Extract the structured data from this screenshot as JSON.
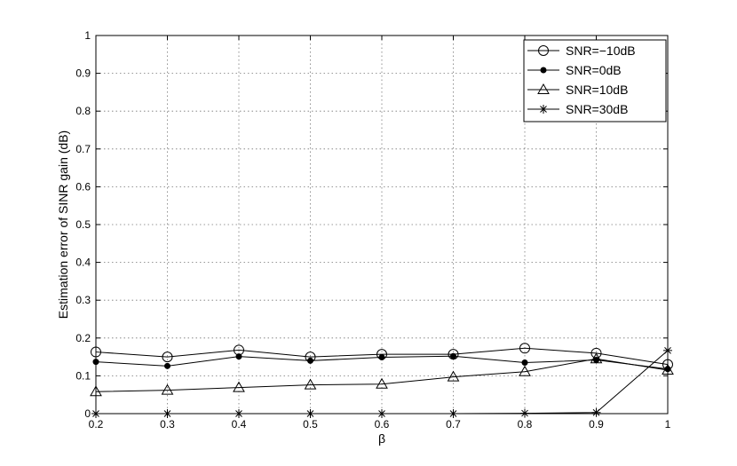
{
  "chart_data": {
    "type": "line",
    "xlabel": "β",
    "ylabel": "Estimation error of SINR gain (dB)",
    "xlim": [
      0.2,
      1
    ],
    "ylim": [
      0,
      1
    ],
    "xticks": [
      "0.2",
      "0.3",
      "0.4",
      "0.5",
      "0.6",
      "0.7",
      "0.8",
      "0.9",
      "1"
    ],
    "yticks": [
      "0",
      "0.1",
      "0.2",
      "0.3",
      "0.4",
      "0.5",
      "0.6",
      "0.7",
      "0.8",
      "0.9",
      "1"
    ],
    "grid": true,
    "legend_position": "top-right",
    "x": [
      0.2,
      0.3,
      0.4,
      0.5,
      0.6,
      0.7,
      0.8,
      0.9,
      1.0
    ],
    "series": [
      {
        "name": "SNR=−10dB",
        "marker": "open-circle",
        "values": [
          0.163,
          0.15,
          0.168,
          0.15,
          0.157,
          0.157,
          0.173,
          0.16,
          0.13
        ]
      },
      {
        "name": "SNR=0dB",
        "marker": "filled-dot",
        "values": [
          0.137,
          0.126,
          0.151,
          0.14,
          0.149,
          0.152,
          0.135,
          0.142,
          0.118
        ]
      },
      {
        "name": "SNR=10dB",
        "marker": "open-triangle",
        "values": [
          0.058,
          0.062,
          0.069,
          0.076,
          0.078,
          0.097,
          0.111,
          0.145,
          0.115
        ]
      },
      {
        "name": "SNR=30dB",
        "marker": "asterisk",
        "values": [
          0.0,
          0.0,
          0.0,
          0.0,
          0.0,
          0.0,
          0.001,
          0.003,
          0.167
        ]
      }
    ]
  }
}
